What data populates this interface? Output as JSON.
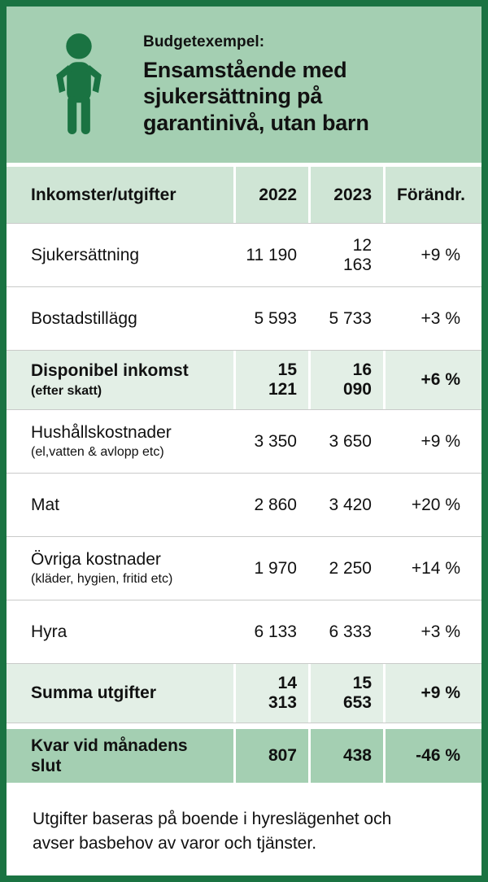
{
  "colors": {
    "frame_green": "#1a7342",
    "banner_green": "#a4cfb2",
    "header_green": "#cfe5d5",
    "subtotal_green": "#e3efe6",
    "text": "#111111"
  },
  "banner": {
    "kicker": "Budgetexempel:",
    "title": "Ensamstående med sjukersättning på garantinivå, utan barn",
    "icon": "person-icon"
  },
  "table": {
    "headers": [
      "Inkomster/utgifter",
      "2022",
      "2023",
      "Förändr."
    ],
    "rows": [
      {
        "label": "Sjukersättning",
        "sublabel": "",
        "v2022": "11 190",
        "v2023": "12 163",
        "change": "+9 %",
        "style": "normal"
      },
      {
        "label": "Bostadstillägg",
        "sublabel": "",
        "v2022": "5 593",
        "v2023": "5 733",
        "change": "+3 %",
        "style": "normal"
      },
      {
        "label": "Disponibel inkomst",
        "sublabel": "(efter skatt)",
        "v2022": "15 121",
        "v2023": "16 090",
        "change": "+6 %",
        "style": "subtotal"
      },
      {
        "label": "Hushållskostnader",
        "sublabel": "(el,vatten & avlopp etc)",
        "v2022": "3 350",
        "v2023": "3 650",
        "change": "+9 %",
        "style": "normal"
      },
      {
        "label": "Mat",
        "sublabel": "",
        "v2022": "2 860",
        "v2023": "3 420",
        "change": "+20 %",
        "style": "normal"
      },
      {
        "label": "Övriga kostnader",
        "sublabel": "(kläder, hygien, fritid etc)",
        "v2022": "1 970",
        "v2023": "2 250",
        "change": "+14 %",
        "style": "normal"
      },
      {
        "label": "Hyra",
        "sublabel": "",
        "v2022": "6 133",
        "v2023": "6 333",
        "change": "+3 %",
        "style": "normal"
      },
      {
        "label": "Summa utgifter",
        "sublabel": "",
        "v2022": "14 313",
        "v2023": "15 653",
        "change": "+9 %",
        "style": "subtotal"
      },
      {
        "label": "Kvar vid månadens slut",
        "sublabel": "",
        "v2022": "807",
        "v2023": "438",
        "change": "-46 %",
        "style": "total"
      }
    ]
  },
  "footnote": "Utgifter baseras på boende i hyreslägenhet och avser basbehov av varor och tjänster.",
  "chart_data": {
    "type": "table",
    "title": "Budgetexempel: Ensamstående med sjukersättning på garantinivå, utan barn",
    "columns": [
      "Inkomster/utgifter",
      "2022",
      "2023",
      "Förändr."
    ],
    "rows": [
      {
        "label": "Sjukersättning",
        "2022": 11190,
        "2023": 12163,
        "change": "+9 %"
      },
      {
        "label": "Bostadstillägg",
        "2022": 5593,
        "2023": 5733,
        "change": "+3 %"
      },
      {
        "label": "Disponibel inkomst (efter skatt)",
        "2022": 15121,
        "2023": 16090,
        "change": "+6 %"
      },
      {
        "label": "Hushållskostnader (el,vatten & avlopp etc)",
        "2022": 3350,
        "2023": 3650,
        "change": "+9 %"
      },
      {
        "label": "Mat",
        "2022": 2860,
        "2023": 3420,
        "change": "+20 %"
      },
      {
        "label": "Övriga kostnader (kläder, hygien, fritid etc)",
        "2022": 1970,
        "2023": 2250,
        "change": "+14 %"
      },
      {
        "label": "Hyra",
        "2022": 6133,
        "2023": 6333,
        "change": "+3 %"
      },
      {
        "label": "Summa utgifter",
        "2022": 14313,
        "2023": 15653,
        "change": "+9 %"
      },
      {
        "label": "Kvar vid månadens slut",
        "2022": 807,
        "2023": 438,
        "change": "-46 %"
      }
    ],
    "footnote": "Utgifter baseras på boende i hyreslägenhet och avser basbehov av varor och tjänster."
  }
}
